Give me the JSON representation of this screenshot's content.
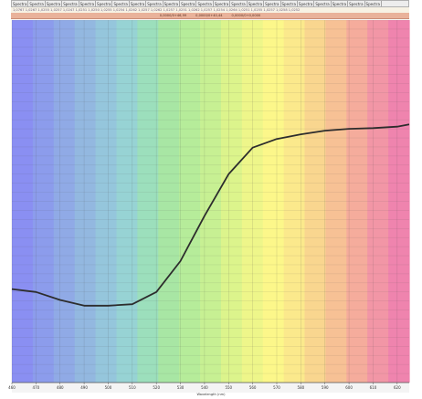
{
  "top_toolbar": {
    "tabs": [
      "Spectra",
      "Spectra",
      "Spectra",
      "Spectra",
      "Spectra",
      "Spectra",
      "Spectra",
      "Spectra",
      "Spectra",
      "Spectra",
      "Spectra",
      "Spectra",
      "Spectra",
      "Spectra",
      "Spectra",
      "Spectra",
      "Spectra",
      "Spectra",
      "Spectra",
      "Spectra",
      "Spectra",
      "Spectra"
    ],
    "values_text": "1,0767 1,0267 1,0255 1,0257 1,0247 1,0251 1,0250 1,0255 1,0254 1,0262 1,0257 1,0262 1,0257 1,0251 1,0262 1,0257 1,0254 1,0264 1,0251 1,0255 1,0257 1,0258 1,0252",
    "status_items": [
      "0,0000/0+46,99",
      "0,0000/0+40,44",
      "0,0000/0+0,0000"
    ]
  },
  "chart_data": {
    "type": "line",
    "title": "",
    "xlabel": "Wavelength (nm)",
    "ylabel": "",
    "xlim": [
      460,
      625
    ],
    "ylim": [
      0,
      1
    ],
    "grid": true,
    "x_ticks": [
      460,
      470,
      480,
      490,
      500,
      510,
      520,
      530,
      540,
      550,
      560,
      570,
      580,
      590,
      600,
      610,
      620
    ],
    "series": [
      {
        "color": "#2d2d2d",
        "x": [
          460,
          470,
          480,
          490,
          500,
          510,
          520,
          530,
          540,
          550,
          560,
          570,
          580,
          590,
          600,
          610,
          620,
          625
        ],
        "y": [
          0.258,
          0.25,
          0.228,
          0.212,
          0.212,
          0.216,
          0.25,
          0.335,
          0.46,
          0.575,
          0.648,
          0.672,
          0.685,
          0.695,
          0.7,
          0.702,
          0.706,
          0.712
        ]
      }
    ],
    "spectrum_bands": [
      "#8a8ff2",
      "#8c9cec",
      "#90aae6",
      "#93b8e0",
      "#95c6dc",
      "#97d3d4",
      "#9cdfbc",
      "#a8e6a4",
      "#b6ec9a",
      "#c7f093",
      "#dcf48c",
      "#eef68a",
      "#fcf78a",
      "#fbe98c",
      "#f9d68f",
      "#f7c195",
      "#f5ac9c",
      "#f296a6",
      "#ef84ae"
    ]
  }
}
